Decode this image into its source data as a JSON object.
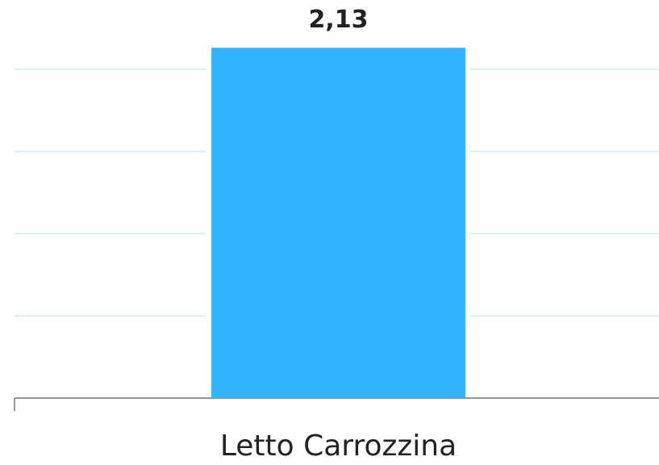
{
  "chart_data": {
    "type": "bar",
    "categories": [
      "Letto Carrozzina"
    ],
    "values": [
      2.13
    ],
    "value_labels": [
      "2,13"
    ],
    "color": "#31b4ff",
    "ylim": [
      0,
      2.2
    ],
    "yticks": [
      0,
      0.5,
      1,
      1.5,
      2
    ],
    "grid": true
  }
}
